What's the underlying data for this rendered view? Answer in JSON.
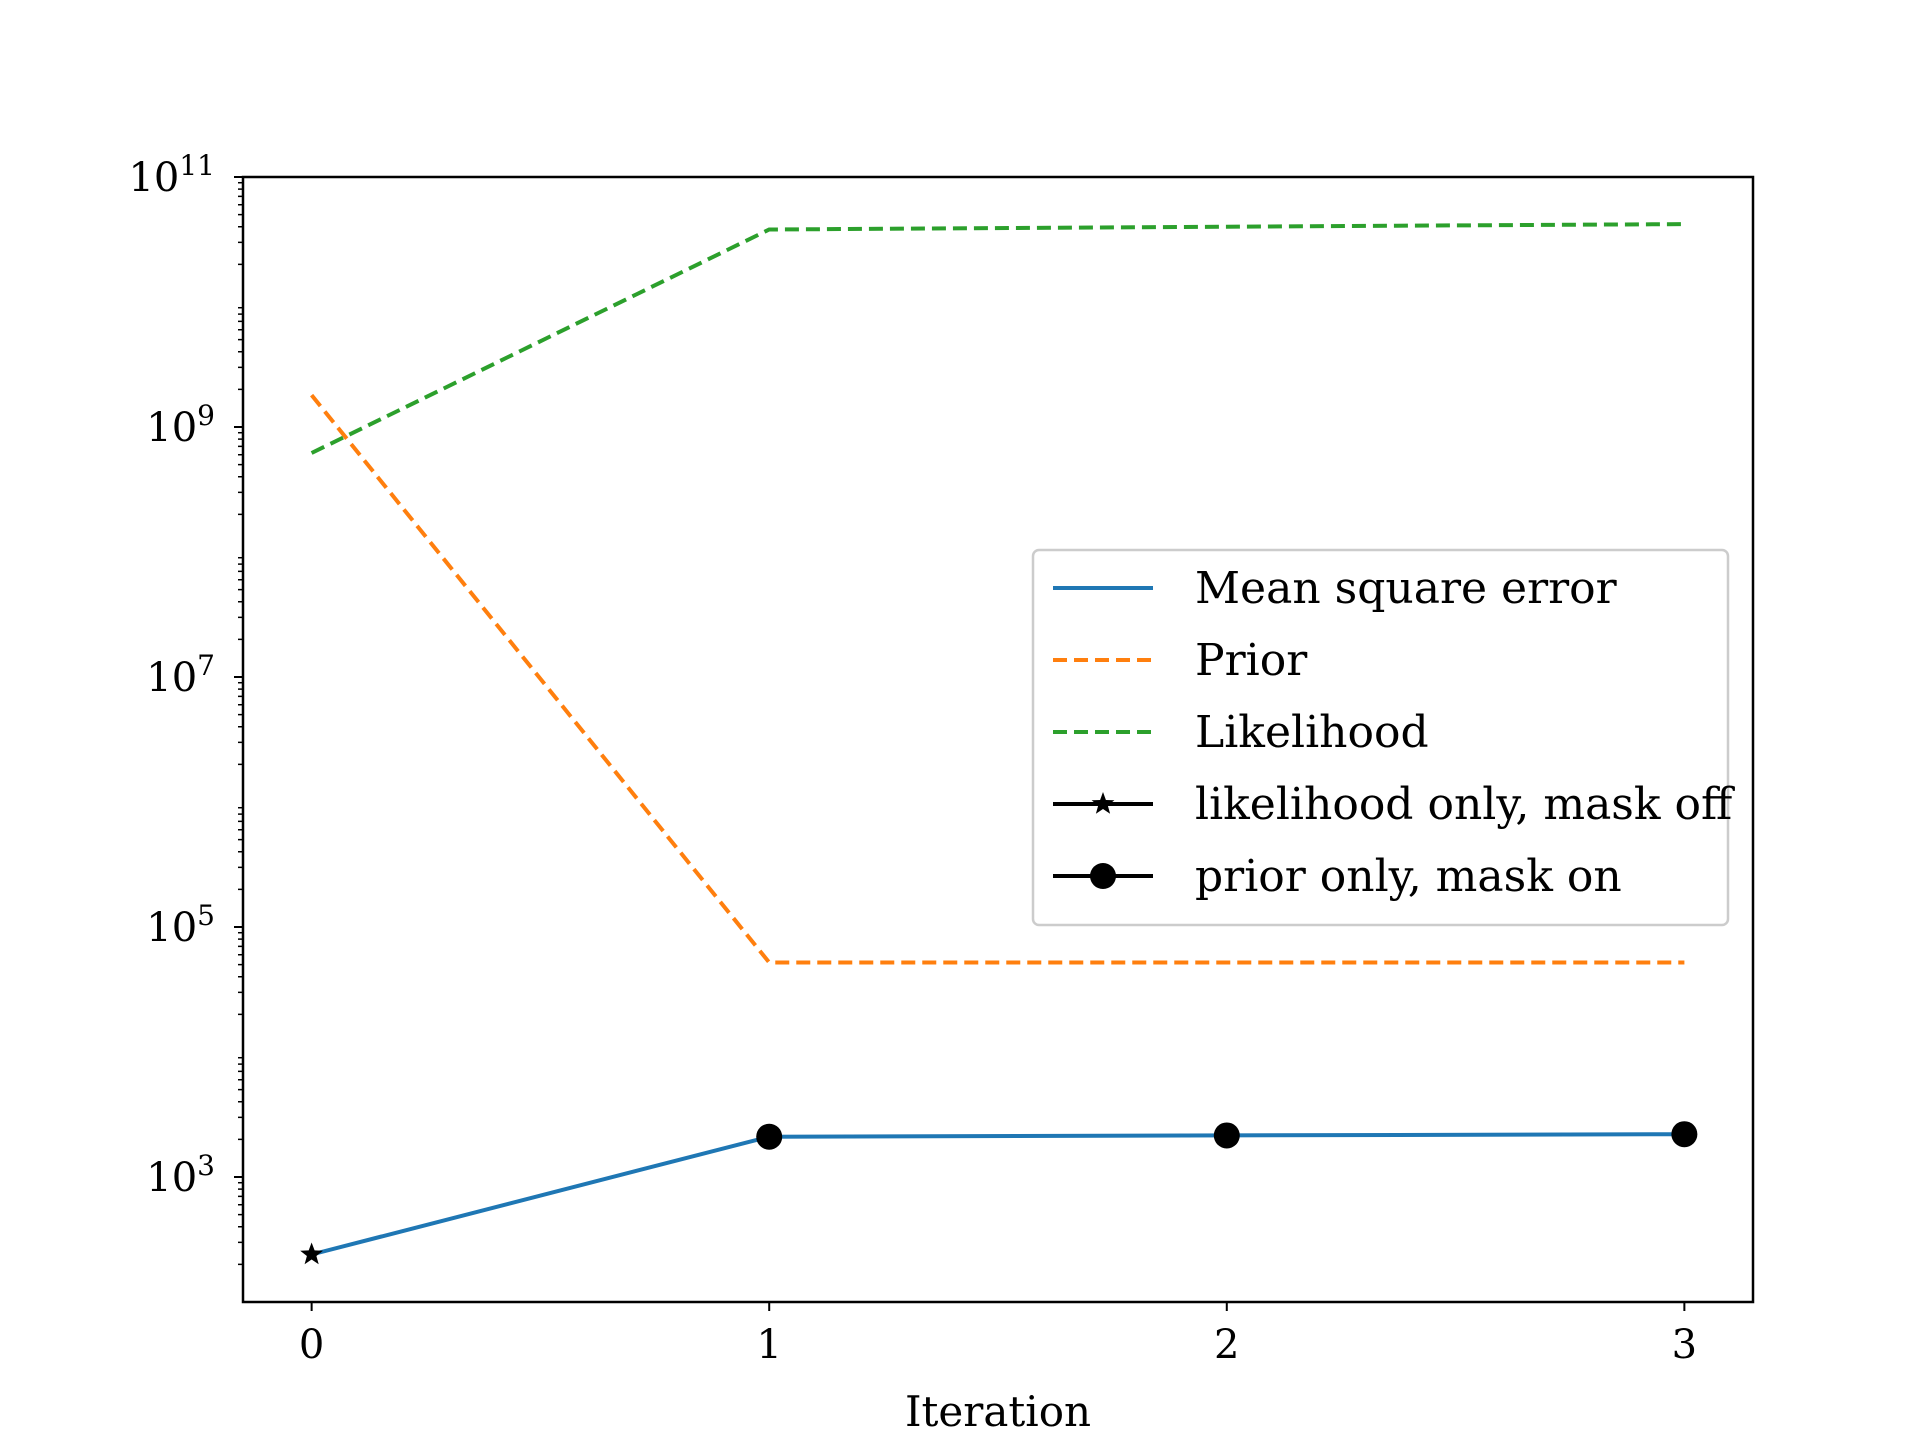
{
  "chart_data": {
    "type": "line",
    "title": "",
    "xlabel": "Iteration",
    "ylabel": "",
    "yscale": "log",
    "x": [
      0,
      1,
      2,
      3
    ],
    "xlim": [
      -0.15,
      3.15
    ],
    "ylim": [
      100,
      100000000000
    ],
    "x_ticks": [
      0,
      1,
      2,
      3
    ],
    "y_ticks": [
      {
        "base": "10",
        "exp": "3",
        "value": 1000
      },
      {
        "base": "10",
        "exp": "5",
        "value": 100000
      },
      {
        "base": "10",
        "exp": "7",
        "value": 10000000
      },
      {
        "base": "10",
        "exp": "9",
        "value": 1000000000
      },
      {
        "base": "10",
        "exp": "11",
        "value": 100000000000
      }
    ],
    "grid": false,
    "legend_position": "center-right",
    "series": [
      {
        "name": "Mean square error",
        "color": "#1f77b4",
        "style": "solid",
        "values": [
          240,
          2100,
          2150,
          2200
        ]
      },
      {
        "name": "Prior",
        "color": "#ff7f0e",
        "style": "dashed",
        "values": [
          1800000000,
          52000,
          52000,
          52000
        ]
      },
      {
        "name": "Likelihood",
        "color": "#2ca02c",
        "style": "dashed",
        "values": [
          620000000,
          38000000000,
          40000000000,
          42000000000
        ]
      }
    ],
    "marker_series": [
      {
        "name": "likelihood only, mask off",
        "marker": "star",
        "color": "#000000",
        "x": [
          0
        ],
        "values": [
          240
        ]
      },
      {
        "name": "prior only, mask on",
        "marker": "circle",
        "color": "#000000",
        "x": [
          1,
          2,
          3
        ],
        "values": [
          2100,
          2150,
          2200
        ]
      }
    ]
  }
}
